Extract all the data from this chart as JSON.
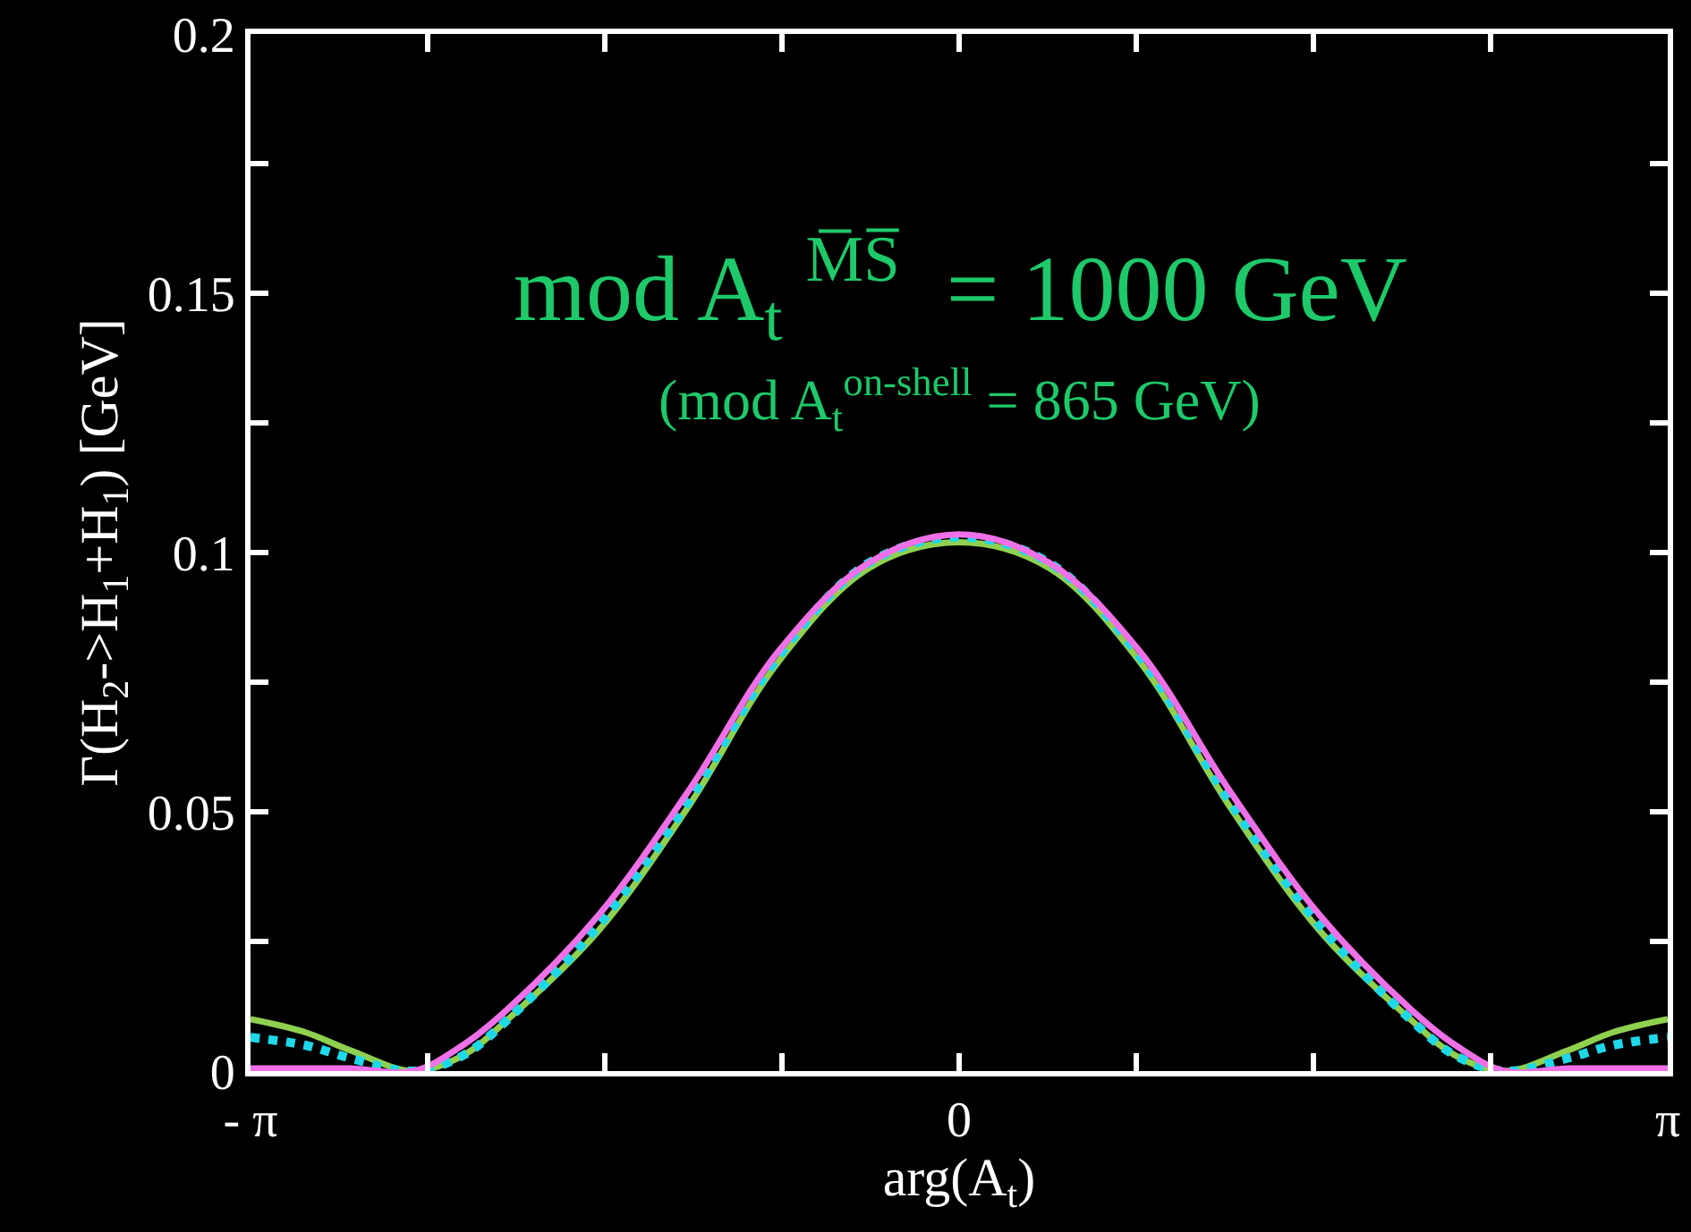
{
  "chart_data": {
    "type": "line",
    "xlabel": "arg(A$_{t}$)",
    "ylabel": "Γ(H$_{2}$->H$_{1}$+H$_{1}$) [GeV]",
    "annotations": [
      "mod A$_{t}$ $^{M̅S̅}$  = 1000 GeV",
      "(mod A$_{t}$$^{on-shell}$ = 865 GeV)"
    ],
    "xlim": [
      -3.1416,
      3.1416
    ],
    "ylim": [
      0,
      0.2
    ],
    "xticks": [
      {
        "value": -3.1416,
        "label": "- π"
      },
      {
        "value": -2.3562,
        "label": null
      },
      {
        "value": -1.5708,
        "label": null
      },
      {
        "value": -0.7854,
        "label": null
      },
      {
        "value": 0,
        "label": "0"
      },
      {
        "value": 0.7854,
        "label": null
      },
      {
        "value": 1.5708,
        "label": null
      },
      {
        "value": 2.3562,
        "label": null
      },
      {
        "value": 3.1416,
        "label": "π"
      }
    ],
    "yticks": [
      0,
      {
        "value": 0.025,
        "label": null
      },
      0.05,
      {
        "value": 0.075,
        "label": null
      },
      0.1,
      {
        "value": 0.125,
        "label": null
      },
      0.15,
      {
        "value": 0.175,
        "label": null
      },
      0.2
    ],
    "marker": "none",
    "x": [
      -3.1416,
      -2.9,
      -2.7,
      -2.42,
      -2.2,
      -2.0,
      -1.6,
      -1.2,
      -0.8,
      -0.4,
      0,
      0.4,
      0.8,
      1.2,
      1.6,
      2.0,
      2.2,
      2.42,
      2.7,
      2.9,
      3.1416
    ],
    "series": [
      {
        "color": "#8fd14f",
        "line_style": "solid",
        "values": [
          0.01,
          0.0075,
          0.004,
          0,
          0.003,
          0.01,
          0.027,
          0.051,
          0.079,
          0.097,
          0.102,
          0.097,
          0.079,
          0.051,
          0.027,
          0.01,
          0.003,
          0,
          0.004,
          0.0075,
          0.01
        ]
      },
      {
        "color": "#1ed8e8",
        "line_style": "dotted",
        "values": [
          0.0065,
          0.005,
          0.0025,
          0,
          0.003,
          0.01,
          0.028,
          0.052,
          0.08,
          0.098,
          0.103,
          0.098,
          0.08,
          0.052,
          0.028,
          0.01,
          0.003,
          0,
          0.0025,
          0.005,
          0.0065
        ]
      },
      {
        "color": "#f070e8",
        "line_style": "solid",
        "values": [
          0.0005,
          0.0005,
          0.0005,
          0,
          0.005,
          0.012,
          0.03,
          0.054,
          0.081,
          0.098,
          0.1035,
          0.098,
          0.081,
          0.054,
          0.03,
          0.012,
          0.005,
          0,
          0.0005,
          0.0005,
          0.0005
        ]
      }
    ]
  }
}
